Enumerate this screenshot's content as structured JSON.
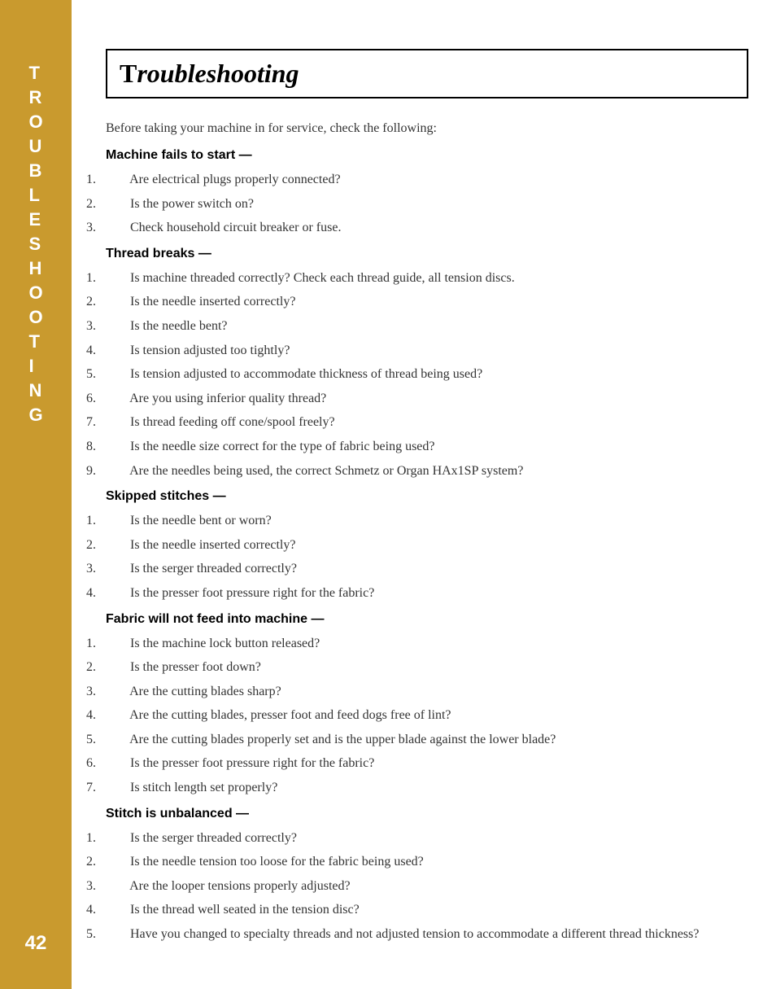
{
  "sidebar": {
    "letters": [
      "T",
      "R",
      "O",
      "U",
      "B",
      "L",
      "E",
      "S",
      "H",
      "O",
      "O",
      "T",
      "I",
      "N",
      "G"
    ],
    "background_color": "#c99a2e",
    "text_color": "#ffffff"
  },
  "page_number": "42",
  "title": {
    "first_char": "T",
    "rest": "roubleshooting"
  },
  "intro": "Before taking your machine in for service, check the following:",
  "sections": [
    {
      "heading": "Machine fails to start —",
      "items": [
        "Are electrical plugs properly connected?",
        "Is the power switch on?",
        "Check household circuit breaker or fuse."
      ]
    },
    {
      "heading": "Thread breaks —",
      "items": [
        "Is machine threaded correctly?  Check each thread guide, all tension discs.",
        "Is the needle inserted correctly?",
        "Is the needle bent?",
        "Is tension adjusted too tightly?",
        "Is tension adjusted to accommodate thickness of thread being used?",
        "Are you using inferior quality thread?",
        "Is thread feeding off cone/spool freely?",
        "Is the needle size correct for the type of fabric being used?",
        "Are the needles being used, the correct Schmetz or Organ HAx1SP system?"
      ]
    },
    {
      "heading": "Skipped stitches —",
      "items": [
        "Is the needle bent or worn?",
        "Is the needle inserted correctly?",
        "Is the serger threaded correctly?",
        "Is the presser foot pressure right for the fabric?"
      ]
    },
    {
      "heading": "Fabric will not feed into machine —",
      "items": [
        "Is the machine lock button released?",
        "Is the presser foot down?",
        "Are the cutting blades sharp?",
        "Are the cutting blades, presser foot and feed dogs free of lint?",
        "Are the cutting blades properly set and is the upper blade against the lower blade?",
        "Is the presser foot pressure right for the fabric?",
        "Is stitch length set properly?"
      ]
    },
    {
      "heading": "Stitch is unbalanced —",
      "items": [
        "Is the serger threaded correctly?",
        "Is the needle tension too loose for the fabric being used?",
        "Are the looper tensions properly adjusted?",
        "Is the thread well seated in the tension disc?",
        "Have you changed to specialty threads and not adjusted tension to accommodate a different thread thickness?"
      ]
    }
  ]
}
